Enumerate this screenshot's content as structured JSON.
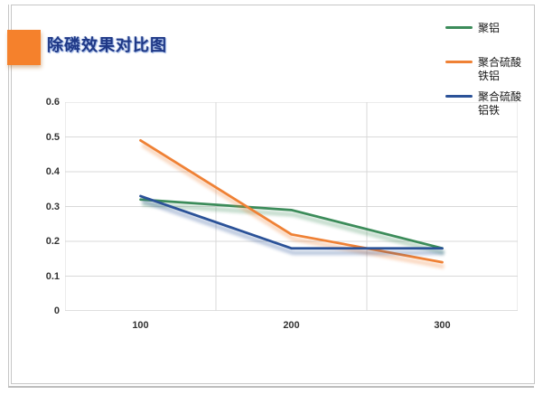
{
  "title": {
    "text": "除磷效果对比图"
  },
  "colors": {
    "title": "#1f3886",
    "accent_square": "#f5812c",
    "grid": "#d9d9d9",
    "axis": "#bfbfbf",
    "tick_label": "#333333",
    "frame": "#c6c6c6"
  },
  "chart_data": {
    "type": "line",
    "title": "除磷效果对比图",
    "categories": [
      "100",
      "200",
      "300"
    ],
    "series": [
      {
        "name": "聚铝",
        "color": "#3c8c5a",
        "values": [
          0.32,
          0.29,
          0.18
        ]
      },
      {
        "name": "聚合硫酸铁铝",
        "color": "#ef8135",
        "values": [
          0.49,
          0.22,
          0.14
        ]
      },
      {
        "name": "聚合硫酸铝铁",
        "color": "#2b5298",
        "values": [
          0.33,
          0.18,
          0.18
        ]
      }
    ],
    "xlabel": "",
    "ylabel": "",
    "ylim": [
      0,
      0.6
    ],
    "yticks": [
      0,
      0.1,
      0.2,
      0.3,
      0.4,
      0.5,
      0.6
    ],
    "ytick_labels": [
      "0",
      "0.1",
      "0.2",
      "0.3",
      "0.4",
      "0.5",
      "0.6"
    ],
    "grid": true,
    "legend_position": "right-top"
  }
}
